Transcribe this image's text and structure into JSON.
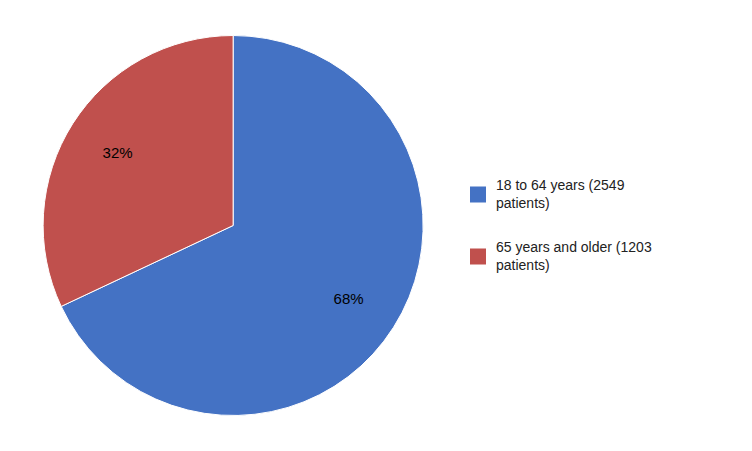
{
  "chart_data": {
    "type": "pie",
    "categories": [
      "18 to 64 years (2549\npatients)",
      "65 years and older (1203\npatients)"
    ],
    "values": [
      68,
      32
    ],
    "value_labels": [
      "68%",
      "32%"
    ],
    "colors": [
      "#4472C4",
      "#C0504D"
    ],
    "data_labels": true,
    "legend": "right"
  }
}
